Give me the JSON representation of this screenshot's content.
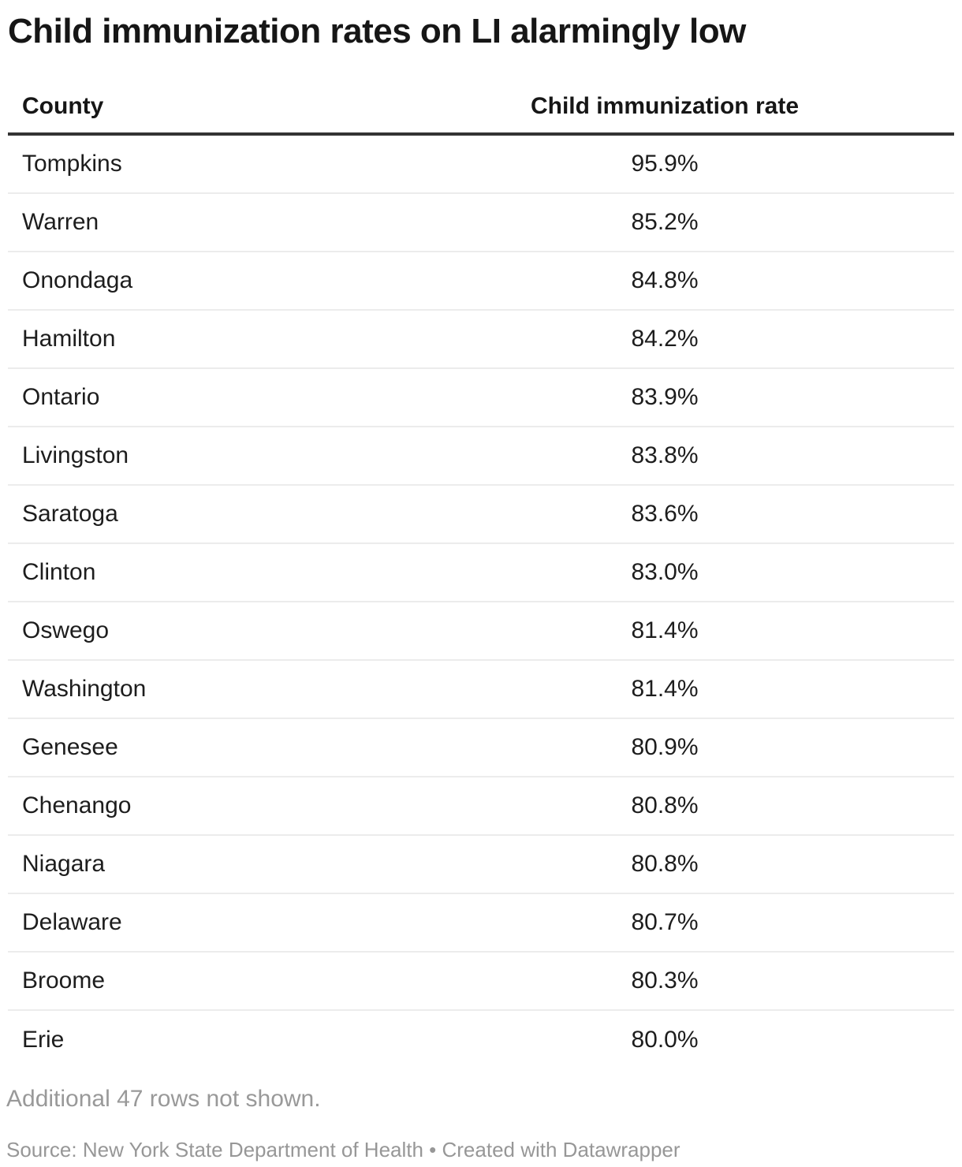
{
  "title": "Child immunization rates on LI alarmingly low",
  "table": {
    "columns": {
      "county": "County",
      "rate": "Child immunization rate"
    },
    "rows": [
      {
        "county": "Tompkins",
        "rate": "95.9%"
      },
      {
        "county": "Warren",
        "rate": "85.2%"
      },
      {
        "county": "Onondaga",
        "rate": "84.8%"
      },
      {
        "county": "Hamilton",
        "rate": "84.2%"
      },
      {
        "county": "Ontario",
        "rate": "83.9%"
      },
      {
        "county": "Livingston",
        "rate": "83.8%"
      },
      {
        "county": "Saratoga",
        "rate": "83.6%"
      },
      {
        "county": "Clinton",
        "rate": "83.0%"
      },
      {
        "county": "Oswego",
        "rate": "81.4%"
      },
      {
        "county": "Washington",
        "rate": "81.4%"
      },
      {
        "county": "Genesee",
        "rate": "80.9%"
      },
      {
        "county": "Chenango",
        "rate": "80.8%"
      },
      {
        "county": "Niagara",
        "rate": "80.8%"
      },
      {
        "county": "Delaware",
        "rate": "80.7%"
      },
      {
        "county": "Broome",
        "rate": "80.3%"
      },
      {
        "county": "Erie",
        "rate": "80.0%"
      }
    ]
  },
  "footer": {
    "additional_note": "Additional 47 rows not shown.",
    "source_line": "Source: New York State Department of Health • Created with Datawrapper"
  },
  "colors": {
    "header_rule": "#333333",
    "row_divider": "#ececec",
    "body_text": "#1d1d1d",
    "muted_text": "#999999"
  },
  "chart_data": {
    "type": "table",
    "title": "Child immunization rates on LI alarmingly low",
    "columns": [
      "County",
      "Child immunization rate"
    ],
    "rows": [
      [
        "Tompkins",
        95.9
      ],
      [
        "Warren",
        85.2
      ],
      [
        "Onondaga",
        84.8
      ],
      [
        "Hamilton",
        84.2
      ],
      [
        "Ontario",
        83.9
      ],
      [
        "Livingston",
        83.8
      ],
      [
        "Saratoga",
        83.6
      ],
      [
        "Clinton",
        83.0
      ],
      [
        "Oswego",
        81.4
      ],
      [
        "Washington",
        81.4
      ],
      [
        "Genesee",
        80.9
      ],
      [
        "Chenango",
        80.8
      ],
      [
        "Niagara",
        80.8
      ],
      [
        "Delaware",
        80.7
      ],
      [
        "Broome",
        80.3
      ],
      [
        "Erie",
        80.0
      ]
    ],
    "value_unit": "%",
    "notes": "Additional 47 rows not shown.",
    "source": "New York State Department of Health",
    "created_with": "Datawrapper"
  }
}
